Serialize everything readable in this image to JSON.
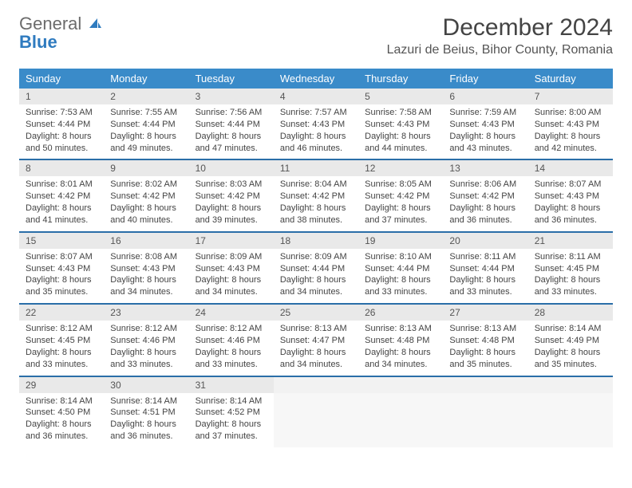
{
  "brand": {
    "part1": "General",
    "part2": "Blue"
  },
  "title": "December 2024",
  "location": "Lazuri de Beius, Bihor County, Romania",
  "colors": {
    "header_bg": "#3a8bc9",
    "header_text": "#ffffff",
    "row_border": "#2a6ea8",
    "daynum_bg": "#e9e9e9",
    "body_text": "#444444",
    "brand_blue": "#2f7bbf"
  },
  "weekdays": [
    "Sunday",
    "Monday",
    "Tuesday",
    "Wednesday",
    "Thursday",
    "Friday",
    "Saturday"
  ],
  "weeks": [
    [
      {
        "n": "1",
        "sr": "7:53 AM",
        "ss": "4:44 PM",
        "dl": "8 hours and 50 minutes."
      },
      {
        "n": "2",
        "sr": "7:55 AM",
        "ss": "4:44 PM",
        "dl": "8 hours and 49 minutes."
      },
      {
        "n": "3",
        "sr": "7:56 AM",
        "ss": "4:44 PM",
        "dl": "8 hours and 47 minutes."
      },
      {
        "n": "4",
        "sr": "7:57 AM",
        "ss": "4:43 PM",
        "dl": "8 hours and 46 minutes."
      },
      {
        "n": "5",
        "sr": "7:58 AM",
        "ss": "4:43 PM",
        "dl": "8 hours and 44 minutes."
      },
      {
        "n": "6",
        "sr": "7:59 AM",
        "ss": "4:43 PM",
        "dl": "8 hours and 43 minutes."
      },
      {
        "n": "7",
        "sr": "8:00 AM",
        "ss": "4:43 PM",
        "dl": "8 hours and 42 minutes."
      }
    ],
    [
      {
        "n": "8",
        "sr": "8:01 AM",
        "ss": "4:42 PM",
        "dl": "8 hours and 41 minutes."
      },
      {
        "n": "9",
        "sr": "8:02 AM",
        "ss": "4:42 PM",
        "dl": "8 hours and 40 minutes."
      },
      {
        "n": "10",
        "sr": "8:03 AM",
        "ss": "4:42 PM",
        "dl": "8 hours and 39 minutes."
      },
      {
        "n": "11",
        "sr": "8:04 AM",
        "ss": "4:42 PM",
        "dl": "8 hours and 38 minutes."
      },
      {
        "n": "12",
        "sr": "8:05 AM",
        "ss": "4:42 PM",
        "dl": "8 hours and 37 minutes."
      },
      {
        "n": "13",
        "sr": "8:06 AM",
        "ss": "4:42 PM",
        "dl": "8 hours and 36 minutes."
      },
      {
        "n": "14",
        "sr": "8:07 AM",
        "ss": "4:43 PM",
        "dl": "8 hours and 36 minutes."
      }
    ],
    [
      {
        "n": "15",
        "sr": "8:07 AM",
        "ss": "4:43 PM",
        "dl": "8 hours and 35 minutes."
      },
      {
        "n": "16",
        "sr": "8:08 AM",
        "ss": "4:43 PM",
        "dl": "8 hours and 34 minutes."
      },
      {
        "n": "17",
        "sr": "8:09 AM",
        "ss": "4:43 PM",
        "dl": "8 hours and 34 minutes."
      },
      {
        "n": "18",
        "sr": "8:09 AM",
        "ss": "4:44 PM",
        "dl": "8 hours and 34 minutes."
      },
      {
        "n": "19",
        "sr": "8:10 AM",
        "ss": "4:44 PM",
        "dl": "8 hours and 33 minutes."
      },
      {
        "n": "20",
        "sr": "8:11 AM",
        "ss": "4:44 PM",
        "dl": "8 hours and 33 minutes."
      },
      {
        "n": "21",
        "sr": "8:11 AM",
        "ss": "4:45 PM",
        "dl": "8 hours and 33 minutes."
      }
    ],
    [
      {
        "n": "22",
        "sr": "8:12 AM",
        "ss": "4:45 PM",
        "dl": "8 hours and 33 minutes."
      },
      {
        "n": "23",
        "sr": "8:12 AM",
        "ss": "4:46 PM",
        "dl": "8 hours and 33 minutes."
      },
      {
        "n": "24",
        "sr": "8:12 AM",
        "ss": "4:46 PM",
        "dl": "8 hours and 33 minutes."
      },
      {
        "n": "25",
        "sr": "8:13 AM",
        "ss": "4:47 PM",
        "dl": "8 hours and 34 minutes."
      },
      {
        "n": "26",
        "sr": "8:13 AM",
        "ss": "4:48 PM",
        "dl": "8 hours and 34 minutes."
      },
      {
        "n": "27",
        "sr": "8:13 AM",
        "ss": "4:48 PM",
        "dl": "8 hours and 35 minutes."
      },
      {
        "n": "28",
        "sr": "8:14 AM",
        "ss": "4:49 PM",
        "dl": "8 hours and 35 minutes."
      }
    ],
    [
      {
        "n": "29",
        "sr": "8:14 AM",
        "ss": "4:50 PM",
        "dl": "8 hours and 36 minutes."
      },
      {
        "n": "30",
        "sr": "8:14 AM",
        "ss": "4:51 PM",
        "dl": "8 hours and 36 minutes."
      },
      {
        "n": "31",
        "sr": "8:14 AM",
        "ss": "4:52 PM",
        "dl": "8 hours and 37 minutes."
      },
      {
        "empty": true
      },
      {
        "empty": true
      },
      {
        "empty": true
      },
      {
        "empty": true
      }
    ]
  ],
  "labels": {
    "sunrise": "Sunrise:",
    "sunset": "Sunset:",
    "daylight": "Daylight:"
  }
}
